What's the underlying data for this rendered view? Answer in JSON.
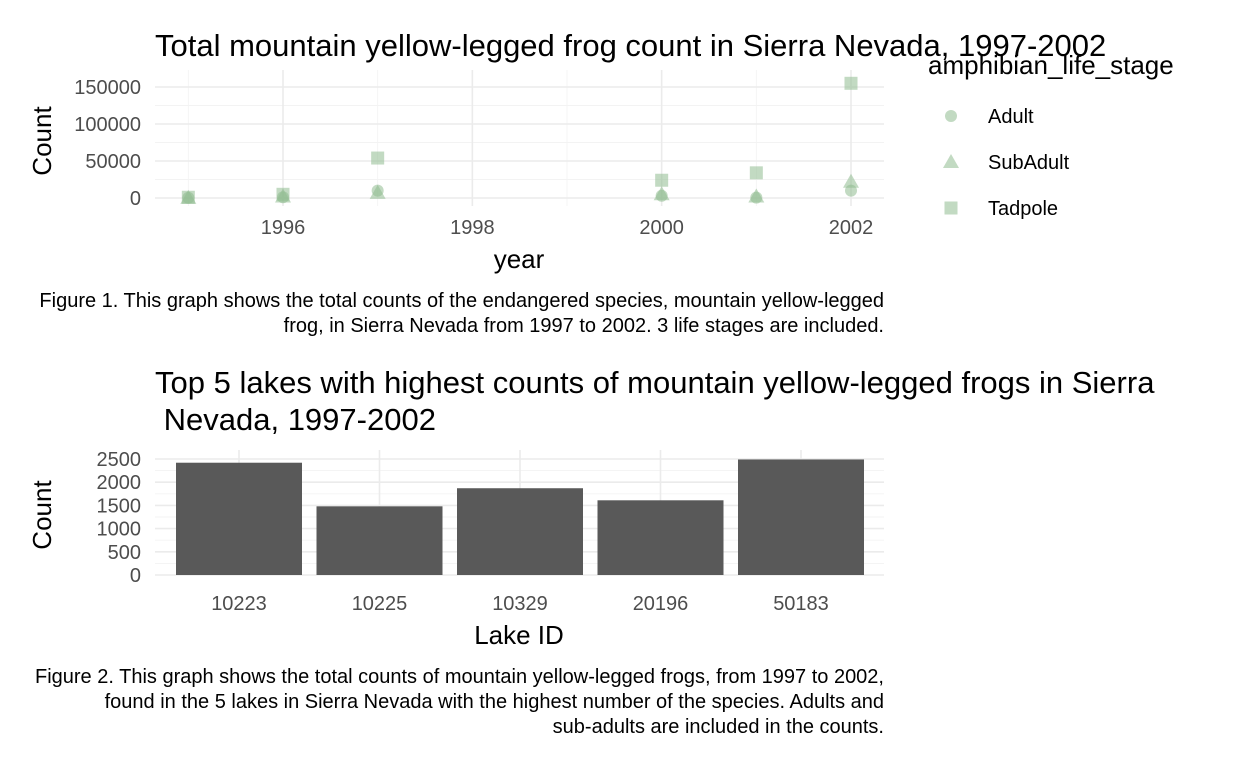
{
  "chart_data": [
    {
      "type": "scatter",
      "title": "Total mountain yellow-legged frog count in Sierra Nevada, 1997-2002",
      "xlabel": "year",
      "ylabel": "Count",
      "xlim": [
        1995,
        2002
      ],
      "ylim": [
        0,
        150000
      ],
      "x_ticks": [
        1996,
        1998,
        2000,
        2002
      ],
      "y_ticks": [
        0,
        50000,
        100000,
        150000
      ],
      "grid": true,
      "legend": {
        "title": "amphibian_life_stage",
        "position": "right",
        "entries": [
          "Adult",
          "SubAdult",
          "Tadpole"
        ]
      },
      "point_color": "#8fbc8f",
      "series": [
        {
          "name": "Adult",
          "shape": "circle",
          "x": [
            1995,
            1996,
            1997,
            2000,
            2001,
            2002
          ],
          "y": [
            300,
            1000,
            10000,
            3000,
            500,
            10000
          ]
        },
        {
          "name": "SubAdult",
          "shape": "triangle",
          "x": [
            1995,
            1996,
            1997,
            2000,
            2001,
            2002
          ],
          "y": [
            200,
            2000,
            7000,
            5000,
            2000,
            22000
          ]
        },
        {
          "name": "Tadpole",
          "shape": "square",
          "x": [
            1995,
            1996,
            1997,
            2000,
            2001,
            2002
          ],
          "y": [
            1000,
            5000,
            54000,
            24000,
            34000,
            155000
          ]
        }
      ],
      "caption_lines": [
        "Figure 1. This graph shows the total counts of the endangered species, mountain yellow-legged",
        "frog, in Sierra Nevada from 1997 to 2002. 3 life stages are included."
      ]
    },
    {
      "type": "bar",
      "title_lines": [
        "Top 5 lakes with highest counts of mountain yellow-legged frogs in Sierra",
        " Nevada, 1997-2002"
      ],
      "xlabel": "Lake ID",
      "ylabel": "Count",
      "categories": [
        "10223",
        "10225",
        "10329",
        "20196",
        "50183"
      ],
      "values": [
        2420,
        1480,
        1870,
        1610,
        2490
      ],
      "ylim": [
        0,
        2500
      ],
      "y_ticks": [
        0,
        500,
        1000,
        1500,
        2000,
        2500
      ],
      "grid": true,
      "bar_color": "#595959",
      "caption_lines": [
        "Figure 2. This graph shows the total counts of mountain yellow-legged frogs, from 1997 to 2002,",
        "found in the 5 lakes in Sierra Nevada with the highest number of the species. Adults and",
        "sub-adults are included in the counts."
      ]
    }
  ]
}
